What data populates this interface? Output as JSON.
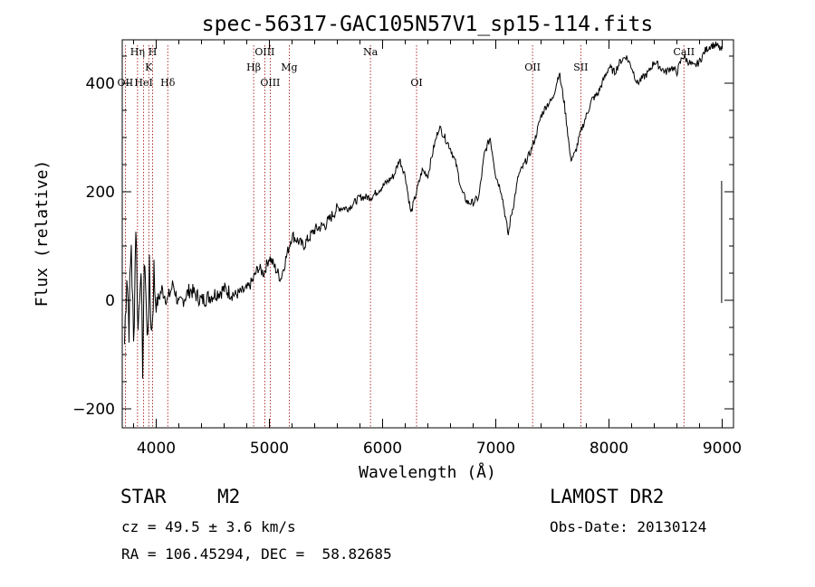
{
  "chart_data": {
    "type": "line",
    "title": "spec-56317-GAC105N57V1_sp15-114.fits",
    "xlabel": "Wavelength (Å)",
    "ylabel": "Flux (relative)",
    "xlim": [
      3700,
      9100
    ],
    "ylim": [
      -235,
      480
    ],
    "x_ticks": [
      4000,
      5000,
      6000,
      7000,
      8000,
      9000
    ],
    "x_tick_labels": [
      "4000",
      "5000",
      "6000",
      "7000",
      "8000",
      "9000"
    ],
    "y_ticks": [
      -200,
      0,
      200,
      400
    ],
    "y_tick_labels": [
      "−200",
      "0",
      "200",
      "400"
    ],
    "grid": false,
    "series": [
      {
        "x": [
          3720,
          3740,
          3760,
          3780,
          3800,
          3820,
          3840,
          3860,
          3880,
          3900,
          3920,
          3940,
          3960,
          3980,
          4000,
          4050,
          4100,
          4150,
          4200,
          4300,
          4400,
          4500,
          4600,
          4700,
          4800,
          4850,
          4900,
          4950,
          5000,
          5050,
          5100,
          5150,
          5200,
          5300,
          5400,
          5500,
          5600,
          5700,
          5800,
          5900,
          6000,
          6100,
          6150,
          6200,
          6250,
          6300,
          6350,
          6400,
          6450,
          6500,
          6550,
          6600,
          6650,
          6700,
          6750,
          6800,
          6850,
          6900,
          6950,
          7000,
          7050,
          7080,
          7110,
          7130,
          7160,
          7200,
          7250,
          7300,
          7350,
          7400,
          7450,
          7500,
          7530,
          7560,
          7600,
          7630,
          7660,
          7700,
          7750,
          7800,
          7850,
          7900,
          8000,
          8050,
          8100,
          8150,
          8200,
          8250,
          8300,
          8350,
          8400,
          8450,
          8500,
          8550,
          8600,
          8650,
          8700,
          8750,
          8800,
          8850,
          8900,
          8950,
          8995
        ],
        "values": [
          -80,
          60,
          -40,
          110,
          -90,
          150,
          -60,
          70,
          -110,
          90,
          -80,
          40,
          -60,
          50,
          -10,
          20,
          0,
          30,
          -10,
          20,
          0,
          10,
          20,
          10,
          20,
          35,
          60,
          50,
          80,
          60,
          40,
          80,
          120,
          100,
          130,
          140,
          170,
          170,
          190,
          190,
          210,
          230,
          260,
          230,
          160,
          200,
          240,
          230,
          280,
          320,
          300,
          280,
          250,
          200,
          180,
          180,
          190,
          270,
          300,
          230,
          200,
          160,
          120,
          150,
          180,
          230,
          250,
          270,
          300,
          340,
          360,
          370,
          395,
          420,
          370,
          320,
          260,
          270,
          310,
          340,
          370,
          380,
          430,
          420,
          440,
          450,
          430,
          400,
          410,
          420,
          440,
          430,
          420,
          430,
          420,
          450,
          440,
          430,
          440,
          460,
          470,
          470,
          460
        ]
      }
    ],
    "line_labels": [
      {
        "name": "OII",
        "wavelength": 3727,
        "row": 3
      },
      {
        "name": "Hη",
        "wavelength": 3835,
        "row": 1
      },
      {
        "name": "HeI",
        "wavelength": 3889,
        "row": 3
      },
      {
        "name": "K",
        "wavelength": 3934,
        "row": 2
      },
      {
        "name": "H",
        "wavelength": 3968,
        "row": 1
      },
      {
        "name": "Hδ",
        "wavelength": 4102,
        "row": 3
      },
      {
        "name": "Hβ",
        "wavelength": 4861,
        "row": 2
      },
      {
        "name": "OIII",
        "wavelength": 4959,
        "row": 1
      },
      {
        "name": "OIII",
        "wavelength": 5007,
        "row": 3
      },
      {
        "name": "Mg",
        "wavelength": 5175,
        "row": 2
      },
      {
        "name": "Na",
        "wavelength": 5893,
        "row": 1
      },
      {
        "name": "OI",
        "wavelength": 6300,
        "row": 3
      },
      {
        "name": "OII",
        "wavelength": 7325,
        "row": 2
      },
      {
        "name": "SII",
        "wavelength": 7751,
        "row": 2
      },
      {
        "name": "CaII",
        "wavelength": 8662,
        "row": 1
      }
    ],
    "colors": {
      "spectrum": "#000000",
      "line_markers": "#a00000",
      "axes": "#000000"
    }
  },
  "info": {
    "object_class": "STAR",
    "subclass": "M2",
    "survey": "LAMOST DR2",
    "velocity": "cz = 49.5 ± 3.6 km/s",
    "obs_date": "Obs-Date: 20130124",
    "coords": "RA = 106.45294, DEC =  58.82685"
  }
}
